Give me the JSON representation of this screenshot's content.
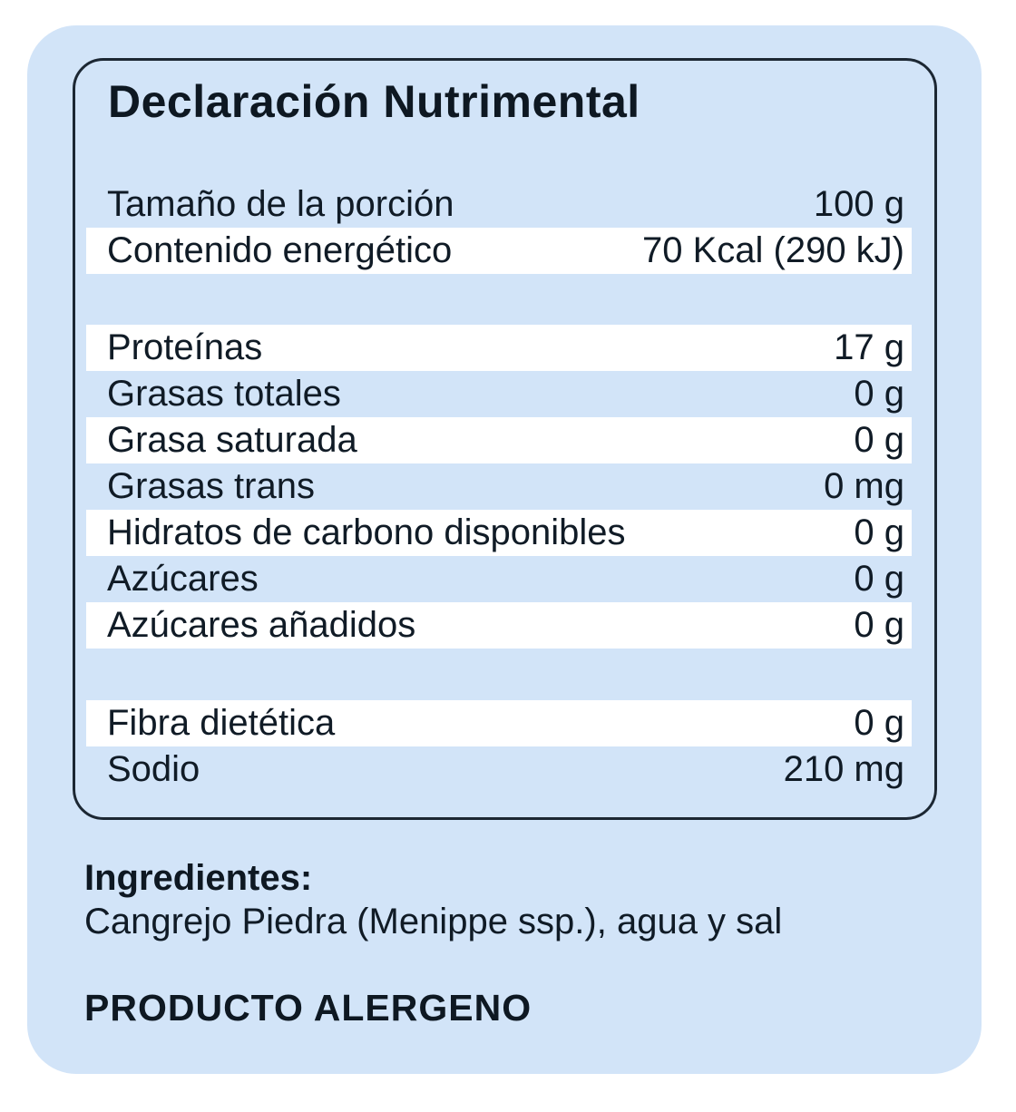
{
  "label": {
    "title": "Declaración Nutrimental",
    "rows": [
      {
        "name": "Tamaño de la porción",
        "value": "100 g"
      },
      {
        "name": "Contenido energético",
        "value": "70 Kcal (290 kJ)"
      },
      {
        "name": "Proteínas",
        "value": "17 g"
      },
      {
        "name": "Grasas totales",
        "value": "0 g"
      },
      {
        "name": "Grasa saturada",
        "value": "0 g"
      },
      {
        "name": "Grasas trans",
        "value": "0 mg"
      },
      {
        "name": "Hidratos de carbono disponibles",
        "value": "0 g"
      },
      {
        "name": "Azúcares",
        "value": "0 g"
      },
      {
        "name": "Azúcares añadidos",
        "value": "0 g"
      },
      {
        "name": "Fibra dietética",
        "value": "0 g"
      },
      {
        "name": "Sodio",
        "value": "210 mg"
      }
    ]
  },
  "ingredients": {
    "heading": "Ingredientes:",
    "text": "Cangrejo Piedra (Menippe ssp.), agua y sal"
  },
  "allergen": {
    "text": "PRODUCTO ALERGENO"
  },
  "colors": {
    "card_background": "#d2e4f8",
    "row_stripe": "#ffffff",
    "text": "#101b26",
    "border": "#1c2733"
  }
}
